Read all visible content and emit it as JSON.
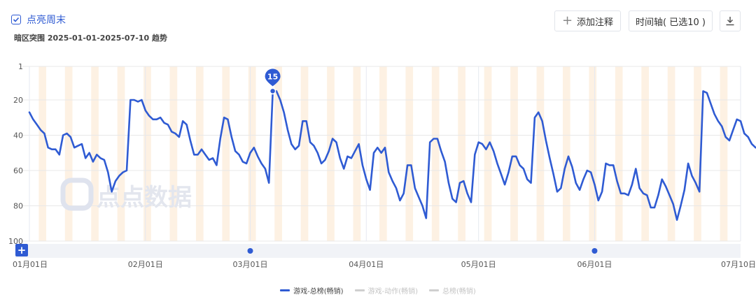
{
  "header": {
    "weekend_highlight_label": "点亮周末",
    "subtitle": "暗区突围 2025-01-01-2025-07-10 趋势"
  },
  "toolbar": {
    "add_note_label": "添加注释",
    "timeline_label": "时间轴( 已选10 )"
  },
  "watermark": "点点数据",
  "colors": {
    "accent": "#2f5bd3",
    "weekend_band": "#fdf1e3",
    "grid": "#e8e8e8"
  },
  "chart_data": {
    "type": "line",
    "x_range": [
      "2025-01-01",
      "2025-07-10"
    ],
    "y_range": [
      1,
      100
    ],
    "y_reversed": true,
    "y_ticks": [
      1,
      20,
      40,
      60,
      80,
      100
    ],
    "x_tick_labels": [
      "01月01日",
      "02月01日",
      "03月01日",
      "04月01日",
      "05月01日",
      "06月01日",
      "07月10日"
    ],
    "x_tick_dates": [
      "2025-01-01",
      "2025-02-01",
      "2025-03-01",
      "2025-04-01",
      "2025-05-01",
      "2025-06-01",
      "2025-07-10"
    ],
    "peak_annotation": {
      "date": "2025-03-07",
      "value": 15
    },
    "timeline_markers": [
      "2025-03-01",
      "2025-06-01"
    ],
    "weekend_highlight": true,
    "legend_position": "bottom-center",
    "series": [
      {
        "name": "游戏-总榜(畅销)",
        "color": "#2f5bd3",
        "active": true,
        "values": [
          27,
          31,
          34,
          37,
          39,
          47,
          48,
          48,
          51,
          40,
          39,
          41,
          47,
          46,
          45,
          53,
          50,
          55,
          51,
          53,
          54,
          61,
          72,
          66,
          63,
          61,
          60,
          20,
          20,
          21,
          20,
          26,
          29,
          31,
          31,
          30,
          33,
          34,
          38,
          39,
          41,
          32,
          34,
          43,
          51,
          51,
          48,
          51,
          54,
          53,
          57,
          42,
          30,
          31,
          41,
          49,
          51,
          55,
          56,
          50,
          47,
          52,
          56,
          59,
          67,
          16,
          15,
          20,
          27,
          37,
          45,
          48,
          46,
          32,
          32,
          44,
          46,
          50,
          56,
          54,
          49,
          42,
          44,
          53,
          59,
          52,
          53,
          49,
          45,
          57,
          65,
          71,
          50,
          47,
          50,
          47,
          61,
          66,
          70,
          77,
          73,
          57,
          57,
          70,
          75,
          80,
          87,
          44,
          42,
          42,
          49,
          55,
          67,
          76,
          78,
          67,
          66,
          73,
          78,
          51,
          44,
          45,
          48,
          44,
          49,
          56,
          62,
          68,
          61,
          52,
          52,
          57,
          59,
          65,
          67,
          30,
          27,
          32,
          43,
          53,
          62,
          72,
          70,
          59,
          52,
          58,
          67,
          71,
          65,
          60,
          61,
          68,
          77,
          72,
          56,
          57,
          57,
          66,
          73,
          73,
          74,
          68,
          59,
          70,
          73,
          74,
          81,
          81,
          74,
          65,
          69,
          74,
          79,
          88,
          80,
          71,
          56,
          63,
          67,
          72,
          15,
          16,
          22,
          28,
          32,
          35,
          41,
          43,
          37,
          31,
          32,
          39,
          41,
          45,
          47
        ]
      },
      {
        "name": "游戏-动作(畅销)",
        "color": "#cfcfcf",
        "active": false
      },
      {
        "name": "总榜(畅销)",
        "color": "#cfcfcf",
        "active": false
      }
    ]
  }
}
